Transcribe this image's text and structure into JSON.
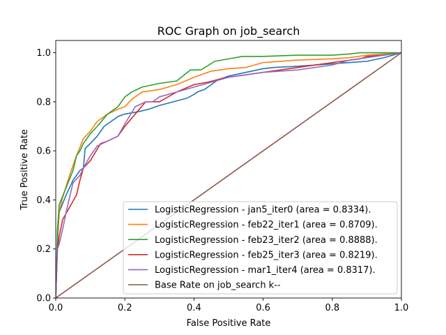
{
  "chart_data": {
    "type": "line",
    "title": "ROC Graph on job_search",
    "xlabel": "False Positive Rate",
    "ylabel": "True Positive Rate",
    "xlim": [
      0.0,
      1.0
    ],
    "ylim": [
      0.0,
      1.05
    ],
    "xticks": [
      "0.0",
      "0.2",
      "0.4",
      "0.6",
      "0.8",
      "1.0"
    ],
    "yticks": [
      "0.0",
      "0.2",
      "0.4",
      "0.6",
      "0.8",
      "1.0"
    ],
    "grid": false,
    "legend_position": "lower-right",
    "series": [
      {
        "name": "LogisticRegression - jan5_iter0 (area = 0.8334).",
        "color": "#1f77b4",
        "x": [
          0.0,
          0.005,
          0.01,
          0.03,
          0.05,
          0.07,
          0.08,
          0.085,
          0.1,
          0.12,
          0.14,
          0.16,
          0.18,
          0.2,
          0.24,
          0.27,
          0.3,
          0.34,
          0.38,
          0.4,
          0.41,
          0.43,
          0.45,
          0.47,
          0.5,
          0.55,
          0.6,
          0.63,
          0.7,
          0.8,
          0.9,
          0.95,
          1.0
        ],
        "y": [
          0.0,
          0.22,
          0.35,
          0.42,
          0.48,
          0.52,
          0.53,
          0.61,
          0.63,
          0.66,
          0.7,
          0.72,
          0.74,
          0.75,
          0.76,
          0.77,
          0.785,
          0.8,
          0.815,
          0.83,
          0.84,
          0.85,
          0.87,
          0.89,
          0.905,
          0.92,
          0.935,
          0.94,
          0.945,
          0.955,
          0.965,
          0.98,
          1.0
        ]
      },
      {
        "name": "LogisticRegression - feb22_iter1 (area = 0.8709).",
        "color": "#ff7f0e",
        "x": [
          0.0,
          0.005,
          0.01,
          0.02,
          0.04,
          0.06,
          0.08,
          0.1,
          0.12,
          0.15,
          0.18,
          0.2,
          0.22,
          0.25,
          0.3,
          0.35,
          0.4,
          0.45,
          0.5,
          0.55,
          0.6,
          0.7,
          0.8,
          0.85,
          0.9,
          1.0
        ],
        "y": [
          0.0,
          0.25,
          0.35,
          0.41,
          0.5,
          0.58,
          0.65,
          0.68,
          0.72,
          0.75,
          0.77,
          0.78,
          0.81,
          0.84,
          0.85,
          0.87,
          0.9,
          0.925,
          0.935,
          0.94,
          0.96,
          0.97,
          0.975,
          0.98,
          0.99,
          1.0
        ]
      },
      {
        "name": "LogisticRegression - feb23_iter2 (area = 0.8888).",
        "color": "#2ca02c",
        "x": [
          0.0,
          0.005,
          0.01,
          0.03,
          0.05,
          0.06,
          0.07,
          0.08,
          0.1,
          0.12,
          0.15,
          0.18,
          0.2,
          0.22,
          0.25,
          0.3,
          0.35,
          0.39,
          0.42,
          0.46,
          0.5,
          0.54,
          0.6,
          0.7,
          0.8,
          0.85,
          0.88,
          1.0
        ],
        "y": [
          0.0,
          0.28,
          0.38,
          0.45,
          0.52,
          0.58,
          0.6,
          0.63,
          0.67,
          0.7,
          0.75,
          0.78,
          0.82,
          0.84,
          0.86,
          0.875,
          0.885,
          0.93,
          0.93,
          0.965,
          0.975,
          0.985,
          0.985,
          0.99,
          0.99,
          0.995,
          1.0,
          1.0
        ]
      },
      {
        "name": "LogisticRegression - feb25_iter3 (area = 0.8219).",
        "color": "#d62728",
        "x": [
          0.0,
          0.005,
          0.01,
          0.02,
          0.04,
          0.06,
          0.07,
          0.08,
          0.1,
          0.13,
          0.15,
          0.18,
          0.2,
          0.23,
          0.26,
          0.3,
          0.35,
          0.4,
          0.44,
          0.48,
          0.5,
          0.55,
          0.6,
          0.7,
          0.8,
          0.88,
          0.9,
          0.95,
          1.0
        ],
        "y": [
          0.0,
          0.2,
          0.25,
          0.32,
          0.37,
          0.42,
          0.48,
          0.53,
          0.56,
          0.63,
          0.64,
          0.66,
          0.7,
          0.75,
          0.8,
          0.8,
          0.84,
          0.87,
          0.88,
          0.895,
          0.9,
          0.91,
          0.92,
          0.94,
          0.96,
          0.975,
          0.985,
          0.99,
          1.0
        ]
      },
      {
        "name": "LogisticRegression - mar1_iter4 (area = 0.8317).",
        "color": "#9467bd",
        "x": [
          0.0,
          0.005,
          0.01,
          0.02,
          0.03,
          0.05,
          0.07,
          0.08,
          0.1,
          0.12,
          0.15,
          0.18,
          0.2,
          0.23,
          0.26,
          0.28,
          0.3,
          0.35,
          0.4,
          0.45,
          0.5,
          0.55,
          0.6,
          0.7,
          0.8,
          0.85,
          0.9,
          0.95,
          1.0
        ],
        "y": [
          0.0,
          0.2,
          0.22,
          0.28,
          0.35,
          0.47,
          0.5,
          0.53,
          0.58,
          0.62,
          0.64,
          0.66,
          0.71,
          0.78,
          0.8,
          0.8,
          0.82,
          0.84,
          0.86,
          0.88,
          0.9,
          0.91,
          0.92,
          0.93,
          0.95,
          0.97,
          0.98,
          0.99,
          1.0
        ]
      },
      {
        "name": "Base Rate on job_search k--",
        "color": "#8c564b",
        "x": [
          0.0,
          1.0
        ],
        "y": [
          0.0,
          1.0
        ]
      }
    ]
  }
}
